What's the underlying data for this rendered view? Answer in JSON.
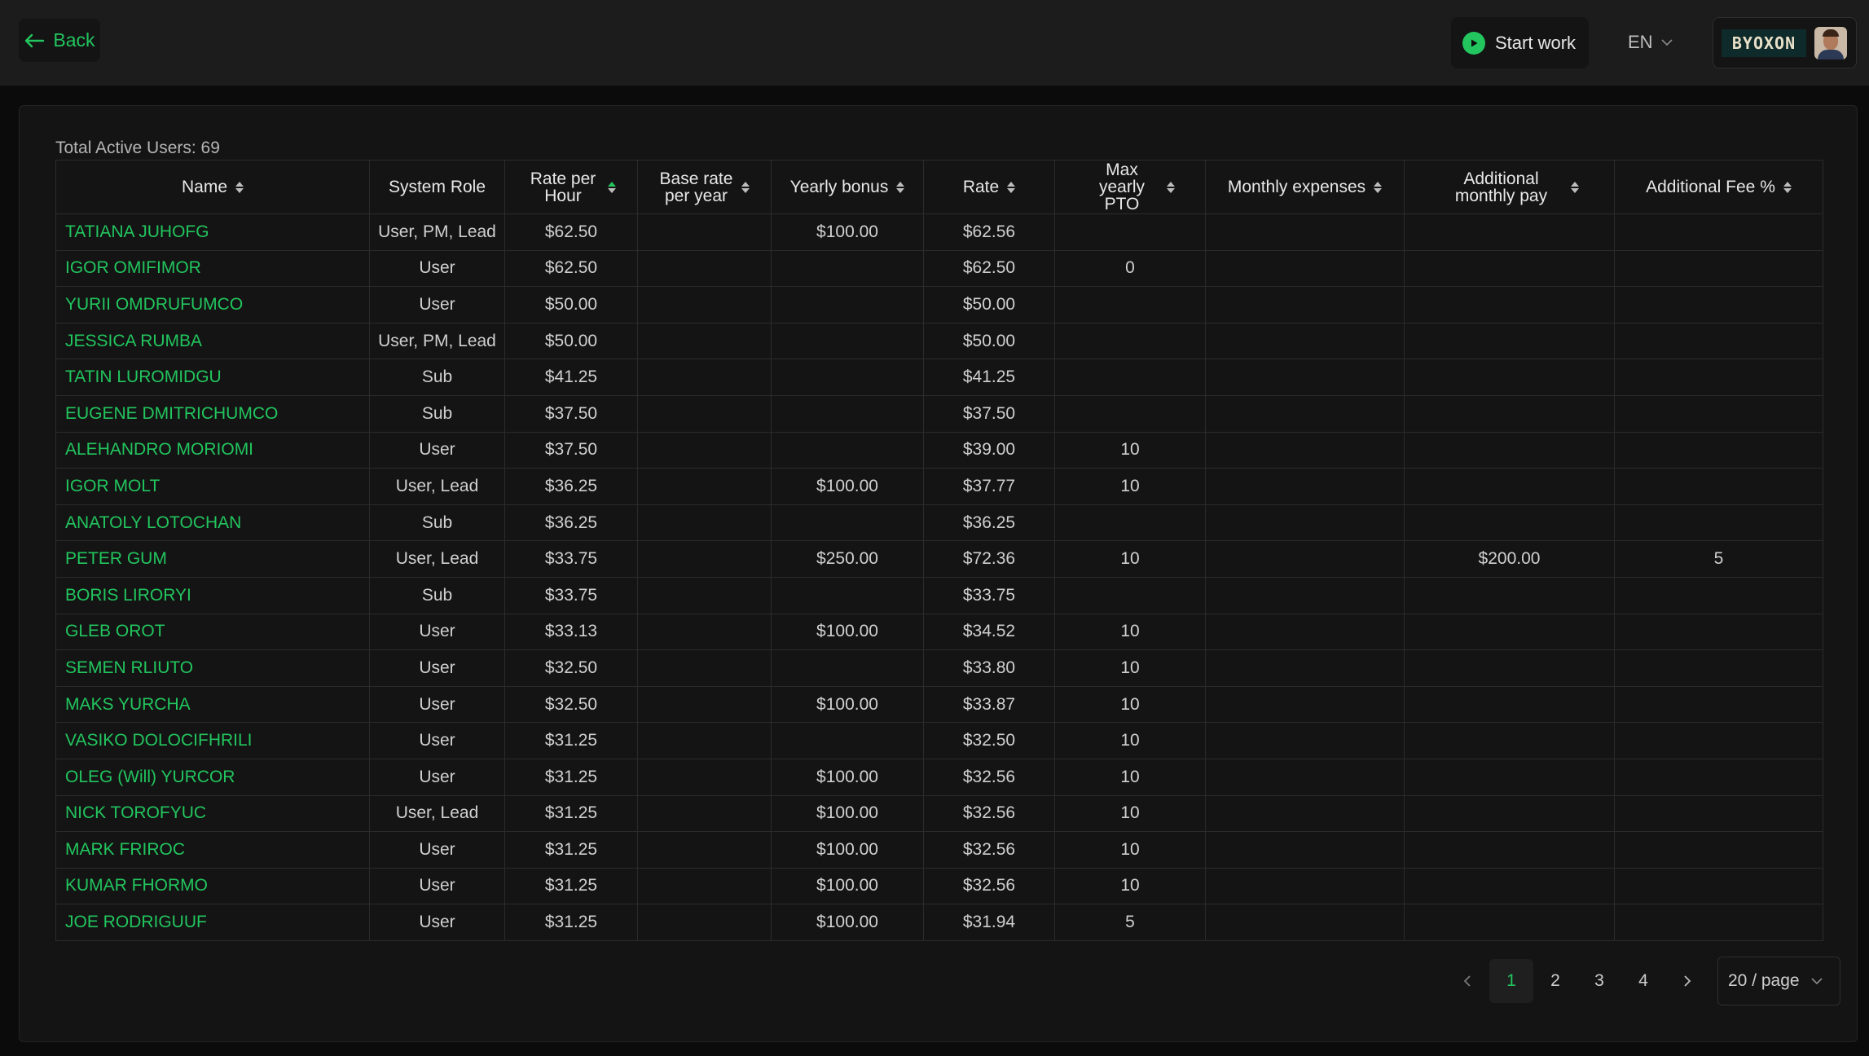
{
  "header": {
    "back_label": "Back",
    "start_work_label": "Start work",
    "language": "EN",
    "logo_text": "BYOXON"
  },
  "summary": {
    "total_active_users": "Total Active Users: 69"
  },
  "table": {
    "columns": [
      {
        "label": "Name"
      },
      {
        "label": "System Role"
      },
      {
        "label": "Rate per Hour"
      },
      {
        "label": "Base rate per year"
      },
      {
        "label": "Yearly bonus"
      },
      {
        "label": "Rate"
      },
      {
        "label": "Max yearly PTO"
      },
      {
        "label": "Monthly expenses"
      },
      {
        "label": "Additional monthly pay"
      },
      {
        "label": "Additional Fee %"
      }
    ],
    "rows": [
      [
        "TATIANA JUHOFG",
        "User, PM, Lead",
        "$62.50",
        "",
        "$100.00",
        "$62.56",
        "",
        "",
        "",
        ""
      ],
      [
        "IGOR OMIFIMOR",
        "User",
        "$62.50",
        "",
        "",
        "$62.50",
        "0",
        "",
        "",
        ""
      ],
      [
        "YURII OMDRUFUMCO",
        "User",
        "$50.00",
        "",
        "",
        "$50.00",
        "",
        "",
        "",
        ""
      ],
      [
        "JESSICA RUMBA",
        "User, PM, Lead",
        "$50.00",
        "",
        "",
        "$50.00",
        "",
        "",
        "",
        ""
      ],
      [
        "TATIN LUROMIDGU",
        "Sub",
        "$41.25",
        "",
        "",
        "$41.25",
        "",
        "",
        "",
        ""
      ],
      [
        "EUGENE DMITRICHUMCO",
        "Sub",
        "$37.50",
        "",
        "",
        "$37.50",
        "",
        "",
        "",
        ""
      ],
      [
        "ALEHANDRO MORIOMI",
        "User",
        "$37.50",
        "",
        "",
        "$39.00",
        "10",
        "",
        "",
        ""
      ],
      [
        "IGOR MOLT",
        "User, Lead",
        "$36.25",
        "",
        "$100.00",
        "$37.77",
        "10",
        "",
        "",
        ""
      ],
      [
        "ANATOLY LOTOCHAN",
        "Sub",
        "$36.25",
        "",
        "",
        "$36.25",
        "",
        "",
        "",
        ""
      ],
      [
        "PETER GUM",
        "User, Lead",
        "$33.75",
        "",
        "$250.00",
        "$72.36",
        "10",
        "",
        "$200.00",
        "5"
      ],
      [
        "BORIS LIRORYI",
        "Sub",
        "$33.75",
        "",
        "",
        "$33.75",
        "",
        "",
        "",
        ""
      ],
      [
        "GLEB OROT",
        "User",
        "$33.13",
        "",
        "$100.00",
        "$34.52",
        "10",
        "",
        "",
        ""
      ],
      [
        "SEMEN RLIUTO",
        "User",
        "$32.50",
        "",
        "",
        "$33.80",
        "10",
        "",
        "",
        ""
      ],
      [
        "MAKS YURCHA",
        "User",
        "$32.50",
        "",
        "$100.00",
        "$33.87",
        "10",
        "",
        "",
        ""
      ],
      [
        "VASIKO DOLOCIFHRILI",
        "User",
        "$31.25",
        "",
        "",
        "$32.50",
        "10",
        "",
        "",
        ""
      ],
      [
        "OLEG (Will) YURCOR",
        "User",
        "$31.25",
        "",
        "$100.00",
        "$32.56",
        "10",
        "",
        "",
        ""
      ],
      [
        "NICK TOROFYUC",
        "User, Lead",
        "$31.25",
        "",
        "$100.00",
        "$32.56",
        "10",
        "",
        "",
        ""
      ],
      [
        "MARK FRIROC",
        "User",
        "$31.25",
        "",
        "$100.00",
        "$32.56",
        "10",
        "",
        "",
        ""
      ],
      [
        "KUMAR FHORMO",
        "User",
        "$31.25",
        "",
        "$100.00",
        "$32.56",
        "10",
        "",
        "",
        ""
      ],
      [
        "JOE RODRIGUUF",
        "User",
        "$31.25",
        "",
        "$100.00",
        "$31.94",
        "5",
        "",
        "",
        ""
      ]
    ]
  },
  "pagination": {
    "pages": [
      "1",
      "2",
      "3",
      "4"
    ],
    "current": "1",
    "page_size": "20 / page"
  },
  "colors": {
    "accent": "#22c55e",
    "background": "#141414",
    "topbar": "#1c1c1c"
  }
}
